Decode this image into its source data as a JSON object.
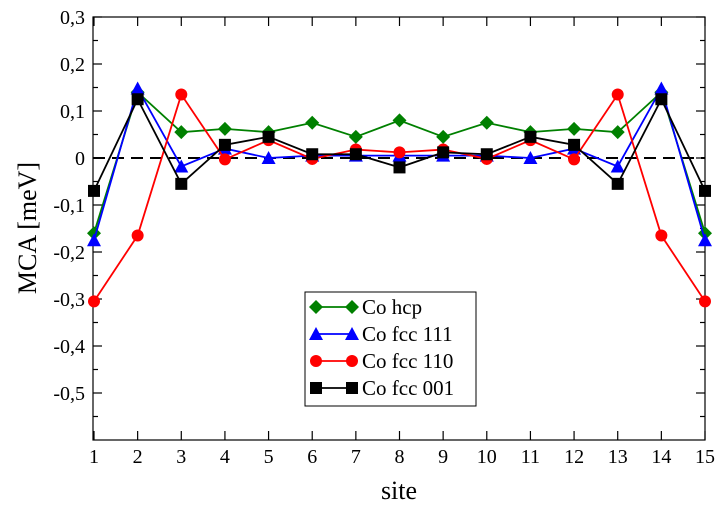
{
  "chart_data": {
    "type": "line",
    "xlabel": "site",
    "ylabel": "MCA [meV]",
    "xlim": [
      1,
      15
    ],
    "ylim": [
      -0.6,
      0.3
    ],
    "x": [
      1,
      2,
      3,
      4,
      5,
      6,
      7,
      8,
      9,
      10,
      11,
      12,
      13,
      14,
      15
    ],
    "x_tick_labels": [
      "1",
      "2",
      "3",
      "4",
      "5",
      "6",
      "7",
      "8",
      "9",
      "10",
      "11",
      "12",
      "13",
      "14",
      "15"
    ],
    "y_ticks": [
      0.3,
      0.2,
      0.1,
      0,
      -0.1,
      -0.2,
      -0.3,
      -0.4,
      -0.5
    ],
    "y_tick_labels": [
      "0,3",
      "0,2",
      "0,1",
      "0",
      "-0,1",
      "-0,2",
      "-0,3",
      "-0,4",
      "-0,5"
    ],
    "reference_line": {
      "y": 0,
      "style": "dashed",
      "color": "#000000"
    },
    "legend_position": "lower-center",
    "series": [
      {
        "name": "Co hcp",
        "color": "#008000",
        "marker": "diamond",
        "values": [
          -0.16,
          0.14,
          0.055,
          0.062,
          0.055,
          0.075,
          0.045,
          0.08,
          0.045,
          0.075,
          0.055,
          0.062,
          0.055,
          0.14,
          -0.16
        ]
      },
      {
        "name": "Co fcc 111",
        "color": "#0000ff",
        "marker": "triangle",
        "values": [
          -0.175,
          0.148,
          -0.018,
          0.02,
          0.0,
          0.005,
          0.005,
          0.005,
          0.005,
          0.005,
          0.0,
          0.02,
          -0.018,
          0.148,
          -0.175
        ]
      },
      {
        "name": "Co fcc 110",
        "color": "#ff0000",
        "marker": "circle",
        "values": [
          -0.305,
          -0.165,
          0.135,
          -0.003,
          0.038,
          -0.002,
          0.018,
          0.012,
          0.018,
          -0.002,
          0.038,
          -0.003,
          0.135,
          -0.165,
          -0.305
        ]
      },
      {
        "name": "Co fcc 001",
        "color": "#000000",
        "marker": "square",
        "values": [
          -0.07,
          0.125,
          -0.055,
          0.028,
          0.045,
          0.008,
          0.008,
          -0.02,
          0.012,
          0.008,
          0.045,
          0.028,
          -0.055,
          0.125,
          -0.07
        ]
      }
    ]
  }
}
